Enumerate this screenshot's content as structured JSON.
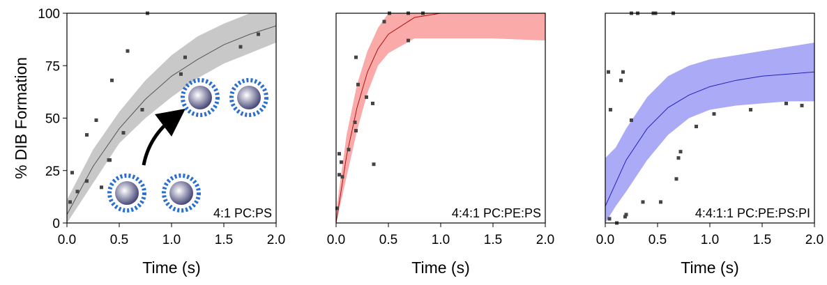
{
  "chart_data": [
    {
      "type": "scatter",
      "ylabel": "% DIB Formation",
      "xlabel": "Time (s)",
      "annotation": "4:1 PC:PS",
      "xlim": [
        0,
        2
      ],
      "ylim": [
        0,
        100
      ],
      "xticks": [
        {
          "value": 0,
          "label": "0.0"
        },
        0.5,
        {
          "value": 1,
          "label": "1.0"
        },
        1.5,
        {
          "value": 2,
          "label": "2.0"
        }
      ],
      "yticks": [
        0,
        25,
        50,
        75,
        100
      ],
      "point_color": "#444444",
      "line_color": "#555555",
      "band_color": "#c8c8c8",
      "x": [
        0.03,
        0.05,
        0.1,
        0.19,
        0.19,
        0.28,
        0.33,
        0.4,
        0.41,
        0.43,
        0.54,
        0.58,
        0.72,
        0.77,
        1.09,
        1.13,
        1.66,
        1.83
      ],
      "values": [
        10,
        24,
        15,
        42,
        20,
        49,
        17,
        30,
        30,
        68,
        43,
        82,
        54,
        100,
        71,
        79,
        84,
        90
      ],
      "fit_x": [
        0,
        0.25,
        0.5,
        0.75,
        1.0,
        1.25,
        1.5,
        1.75,
        2.0
      ],
      "fit_values": [
        4,
        27,
        45,
        59,
        70,
        78,
        85,
        90,
        94
      ],
      "band_lower": [
        0,
        19,
        38,
        50,
        60,
        69,
        76,
        81,
        86
      ],
      "band_upper": [
        11,
        35,
        53,
        68,
        80,
        89,
        95,
        100,
        100
      ]
    },
    {
      "type": "scatter",
      "xlabel": "Time (s)",
      "annotation": "4:4:1 PC:PE:PS",
      "xlim": [
        0,
        2
      ],
      "ylim": [
        0,
        100
      ],
      "xticks": [
        {
          "value": 0,
          "label": "0.0"
        },
        0.5,
        {
          "value": 1,
          "label": "1.0"
        },
        1.5,
        {
          "value": 2,
          "label": "2.0"
        }
      ],
      "point_color": "#444444",
      "line_color": "#b01010",
      "band_color": "#fbaaaa",
      "x": [
        0.01,
        0.03,
        0.03,
        0.05,
        0.06,
        0.12,
        0.18,
        0.19,
        0.19,
        0.21,
        0.29,
        0.35,
        0.36,
        0.46,
        0.51,
        0.69,
        0.69,
        0.83
      ],
      "values": [
        7,
        23,
        33,
        29,
        22,
        35,
        48,
        44,
        79,
        66,
        60,
        57,
        28,
        96,
        100,
        100,
        87,
        100
      ],
      "fit_x": [
        0,
        0.1,
        0.2,
        0.3,
        0.4,
        0.5,
        0.75,
        1.0,
        1.5,
        2.0
      ],
      "fit_values": [
        0,
        32,
        55,
        72,
        83,
        90,
        98,
        100,
        100,
        100
      ],
      "band_lower": [
        0,
        22,
        44,
        62,
        75,
        81,
        88,
        88,
        88,
        87
      ],
      "band_upper": [
        5,
        42,
        66,
        82,
        93,
        100,
        100,
        100,
        100,
        100
      ]
    },
    {
      "type": "scatter",
      "xlabel": "Time (s)",
      "annotation": "4:4:1:1 PC:PE:PS:PI",
      "xlim": [
        0,
        2
      ],
      "ylim": [
        0,
        100
      ],
      "xticks": [
        {
          "value": 0,
          "label": "0.0"
        },
        0.5,
        {
          "value": 1,
          "label": "1.0"
        },
        1.5,
        {
          "value": 2,
          "label": "2.0"
        }
      ],
      "point_color": "#444444",
      "line_color": "#2020c0",
      "band_color": "#aaaaf6",
      "x": [
        0.03,
        0.04,
        0.05,
        0.11,
        0.15,
        0.17,
        0.19,
        0.2,
        0.25,
        0.25,
        0.31,
        0.36,
        0.46,
        0.48,
        0.53,
        0.65,
        0.68,
        0.7,
        0.72,
        0.87,
        1.04,
        1.39,
        1.73,
        1.88
      ],
      "values": [
        72,
        2,
        54,
        0,
        68,
        72,
        3,
        4,
        49,
        100,
        100,
        10,
        100,
        100,
        10,
        100,
        21,
        31,
        34,
        46,
        52,
        54,
        57,
        56
      ],
      "fit_x": [
        0,
        0.1,
        0.2,
        0.4,
        0.6,
        0.8,
        1.0,
        1.25,
        1.5,
        1.75,
        2.0
      ],
      "fit_values": [
        8,
        19,
        30,
        45,
        55,
        61,
        65,
        68,
        70,
        71,
        72
      ],
      "band_lower": [
        0,
        8,
        15,
        30,
        42,
        50,
        54,
        56,
        57,
        58,
        58
      ],
      "band_upper": [
        31,
        36,
        45,
        60,
        70,
        75,
        78,
        80,
        82,
        84,
        86
      ]
    }
  ]
}
